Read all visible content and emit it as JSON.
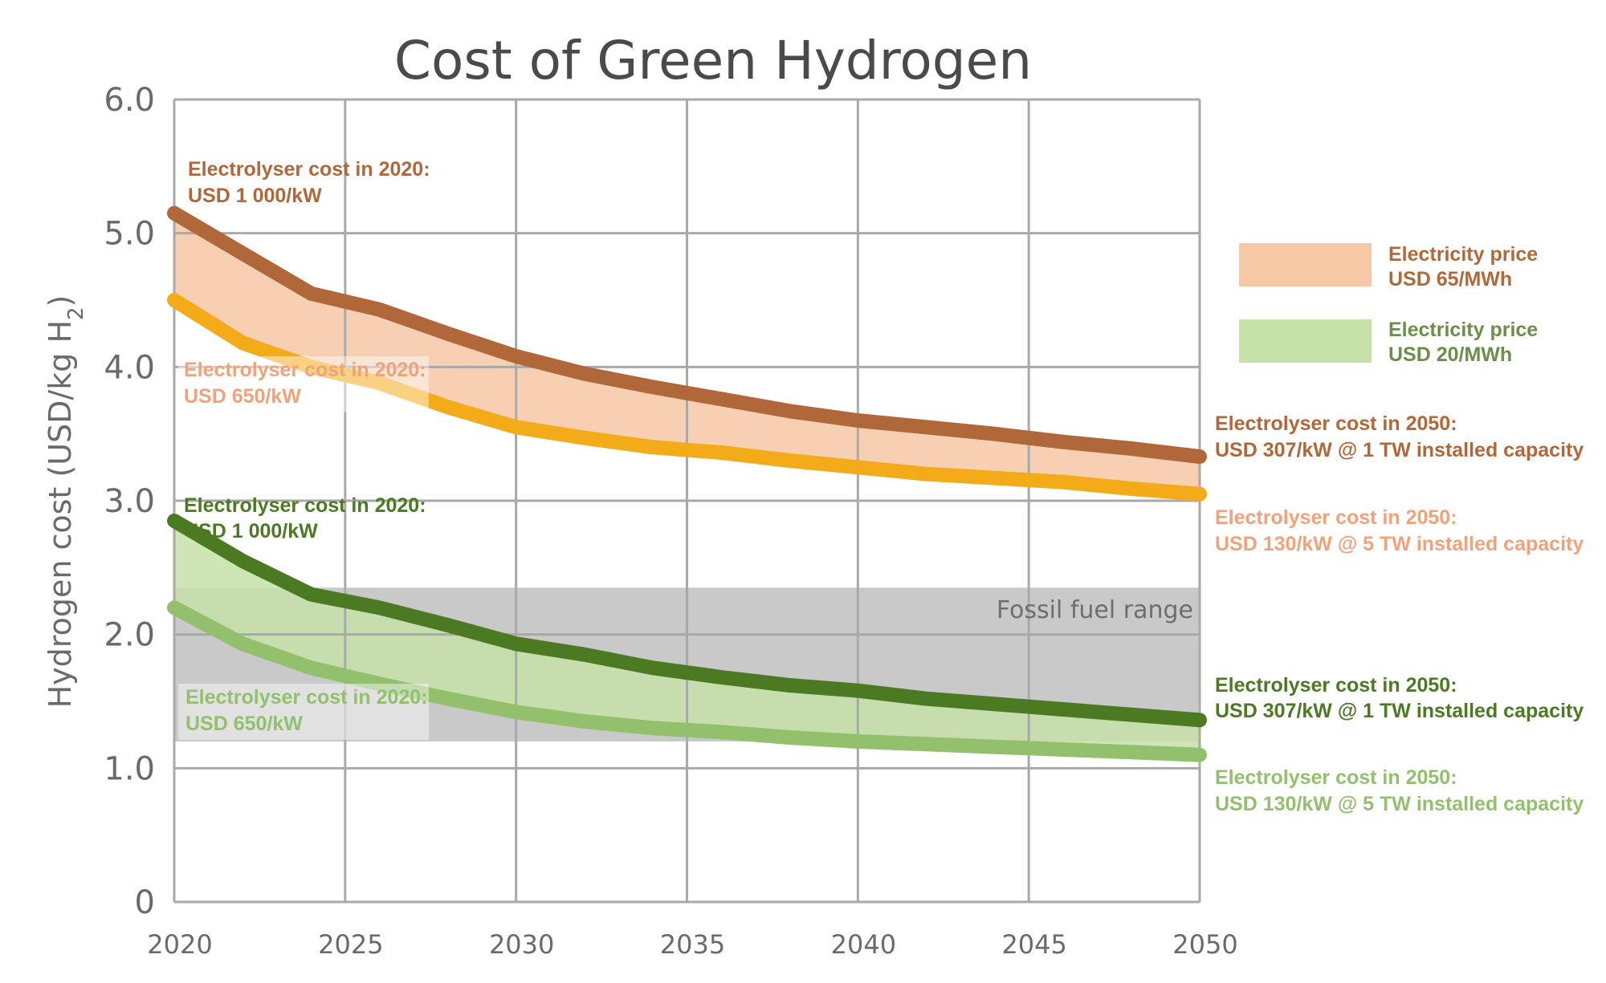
{
  "chart_data": {
    "type": "line",
    "title": "Cost of Green Hydrogen",
    "xlabel": "",
    "ylabel": "Hydrogen cost (USD/kg H",
    "ylabel_sub": "2",
    "ylabel_close": ")",
    "xlim": [
      2020,
      2050
    ],
    "ylim": [
      0,
      6
    ],
    "grid": true,
    "x_ticks": [
      "2020",
      "2025",
      "2030",
      "2035",
      "2040",
      "2045",
      "2050"
    ],
    "y_ticks": [
      "0",
      "1.0",
      "2.0",
      "3.0",
      "4.0",
      "5.0",
      "6.0"
    ],
    "x": [
      2020,
      2022,
      2024,
      2026,
      2028,
      2030,
      2032,
      2034,
      2036,
      2038,
      2040,
      2042,
      2044,
      2046,
      2048,
      2050
    ],
    "series": [
      {
        "key": "s65_1000",
        "color": "#b0673a",
        "values": [
          5.15,
          4.85,
          4.55,
          4.43,
          4.25,
          4.08,
          3.95,
          3.85,
          3.76,
          3.67,
          3.6,
          3.55,
          3.5,
          3.44,
          3.39,
          3.33
        ]
      },
      {
        "key": "s65_650",
        "color": "#f4ab1a",
        "values": [
          4.5,
          4.18,
          4.0,
          3.88,
          3.7,
          3.55,
          3.47,
          3.4,
          3.36,
          3.3,
          3.25,
          3.2,
          3.17,
          3.14,
          3.09,
          3.05
        ]
      },
      {
        "key": "s20_1000",
        "color": "#4c7a23",
        "values": [
          2.85,
          2.55,
          2.3,
          2.2,
          2.07,
          1.93,
          1.85,
          1.75,
          1.68,
          1.62,
          1.58,
          1.52,
          1.48,
          1.44,
          1.4,
          1.36
        ]
      },
      {
        "key": "s20_650",
        "color": "#93c06d",
        "values": [
          2.2,
          1.93,
          1.75,
          1.63,
          1.52,
          1.42,
          1.35,
          1.3,
          1.27,
          1.23,
          1.2,
          1.18,
          1.16,
          1.14,
          1.12,
          1.1
        ]
      }
    ],
    "bands": [
      {
        "upper": "s65_1000",
        "lower": "s65_650",
        "color": "#f6c8a6"
      },
      {
        "upper": "s20_1000",
        "lower": "s20_650",
        "color": "#c6e2a8"
      }
    ],
    "fossil_range": {
      "label": "Fossil fuel range",
      "low": 1.2,
      "high": 2.35,
      "color": "#c9c9c9"
    },
    "legend": {
      "placement": "right",
      "items": [
        {
          "line1": "Electricity price",
          "line2": "USD 65/MWh",
          "color": "#f6c8a6"
        },
        {
          "line1": "Electricity price",
          "line2": "USD 20/MWh",
          "color": "#c6e2a8"
        }
      ]
    },
    "annotations": [
      {
        "key": "a1",
        "line1": "Electrolyser cost in 2020:",
        "line2": "USD 1 000/kW",
        "color": "#b0673a"
      },
      {
        "key": "a2",
        "line1": "Electrolyser cost in 2020:",
        "line2": "USD 650/kW",
        "color": "#f0a27a"
      },
      {
        "key": "a3",
        "line1": "Electrolyser cost in 2020:",
        "line2": "USD 1 000/kW",
        "color": "#4c7a23"
      },
      {
        "key": "a4",
        "line1": "Electrolyser cost in 2020:",
        "line2": "USD 650/kW",
        "color": "#93c06d"
      },
      {
        "key": "a5",
        "line1": "Electrolyser cost in 2050:",
        "line2": "USD 307/kW @ 1 TW installed capacity",
        "color": "#b0673a"
      },
      {
        "key": "a6",
        "line1": "Electrolyser cost in 2050:",
        "line2": "USD 130/kW @ 5 TW installed capacity",
        "color": "#f0a27a"
      },
      {
        "key": "a7",
        "line1": "Electrolyser cost in 2050:",
        "line2": "USD 307/kW @ 1 TW installed capacity",
        "color": "#4c7a23"
      },
      {
        "key": "a8",
        "line1": "Electrolyser cost in 2050:",
        "line2": "USD 130/kW @ 5 TW installed capacity",
        "color": "#93c06d"
      }
    ]
  }
}
